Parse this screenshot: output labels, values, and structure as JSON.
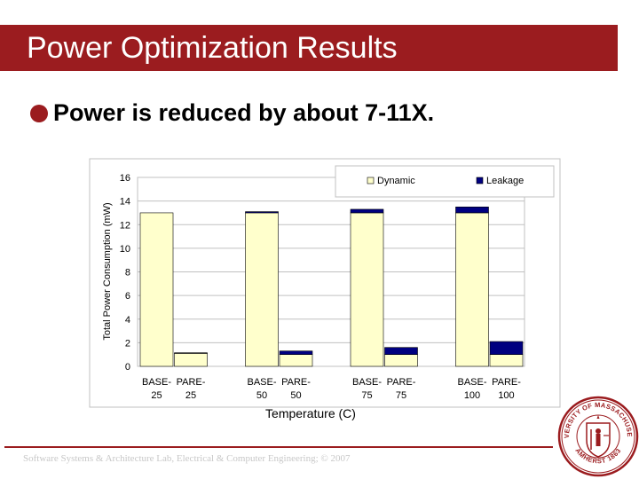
{
  "slide": {
    "title": "Power Optimization Results",
    "bullet": "Power is reduced by about 7-11X.",
    "footer": "Software Systems & Architecture Lab, Electrical & Computer Engineering; © 2007"
  },
  "seal": {
    "text_top": "UNIVERSITY OF MASSACHUSETTS",
    "text_bottom": "AMHERST 1863"
  },
  "colors": {
    "accent": "#9b1c1f",
    "dynamic": "#ffffcc",
    "leakage": "#000080"
  },
  "chart_data": {
    "type": "bar",
    "stacked": true,
    "title": "",
    "xlabel": "Temperature (C)",
    "ylabel": "Total Power Consumption (mW)",
    "ylim": [
      0,
      16
    ],
    "yticks": [
      0,
      2,
      4,
      6,
      8,
      10,
      12,
      14,
      16
    ],
    "grid": "horizontal",
    "legend": "top-right",
    "categories": [
      [
        "BASE-",
        "25"
      ],
      [
        "PARE-",
        "25"
      ],
      [
        "BASE-",
        "50"
      ],
      [
        "PARE-",
        "50"
      ],
      [
        "BASE-",
        "75"
      ],
      [
        "PARE-",
        "75"
      ],
      [
        "BASE-",
        "100"
      ],
      [
        "PARE-",
        "100"
      ]
    ],
    "series": [
      {
        "name": "Dynamic",
        "values": [
          13.0,
          1.1,
          13.0,
          1.0,
          13.0,
          1.0,
          13.0,
          1.0
        ]
      },
      {
        "name": "Leakage",
        "values": [
          0.0,
          0.05,
          0.1,
          0.3,
          0.3,
          0.6,
          0.5,
          1.1
        ]
      }
    ]
  }
}
